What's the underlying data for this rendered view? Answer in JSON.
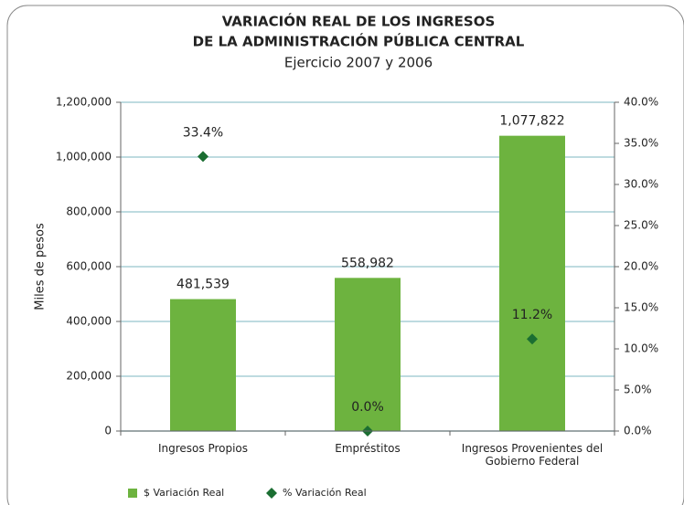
{
  "chart_data": {
    "type": "bar",
    "title": [
      "VARIACIÓN REAL DE LOS INGRESOS",
      "DE LA ADMINISTRACIÓN PÚBLICA CENTRAL"
    ],
    "subtitle": "Ejercicio 2007 y 2006",
    "ylabel": "Miles de pesos",
    "categories": [
      "Ingresos Propios",
      "Empréstitos",
      "Ingresos Provenientes del Gobierno Federal"
    ],
    "series": [
      {
        "name": "$ Variación Real",
        "type": "bar",
        "color": "#6db33f",
        "values": [
          481539,
          558982,
          1077822
        ],
        "value_labels": [
          "481,539",
          "558,982",
          "1,077,822"
        ]
      },
      {
        "name": "% Variación Real",
        "type": "scatter",
        "color": "#1b6e32",
        "axis": "y2",
        "values": [
          33.4,
          0.0,
          11.2
        ],
        "value_labels": [
          "33.4%",
          "0.0%",
          "11.2%"
        ]
      }
    ],
    "ylim": [
      0,
      1200000
    ],
    "yticks": [
      0,
      {
        "value": 200000,
        "label": "200,000"
      },
      {
        "value": 400000,
        "label": "400,000"
      },
      {
        "value": 600000,
        "label": "600,000"
      },
      {
        "value": 800000,
        "label": "800,000"
      },
      {
        "value": 1000000,
        "label": "1,000,000"
      },
      {
        "value": 1200000,
        "label": "1,200,000"
      }
    ],
    "y2lim": [
      0,
      40
    ],
    "y2ticks": [
      {
        "value": 0,
        "label": "0.0%"
      },
      {
        "value": 5,
        "label": "5.0%"
      },
      {
        "value": 10,
        "label": "10.0%"
      },
      {
        "value": 15,
        "label": "15.0%"
      },
      {
        "value": 20,
        "label": "20.0%"
      },
      {
        "value": 25,
        "label": "25.0%"
      },
      {
        "value": 30,
        "label": "30.0%"
      },
      {
        "value": 35,
        "label": "35.0%"
      },
      {
        "value": 40,
        "label": "40.0%"
      }
    ],
    "grid": true,
    "legend": "bottom"
  }
}
